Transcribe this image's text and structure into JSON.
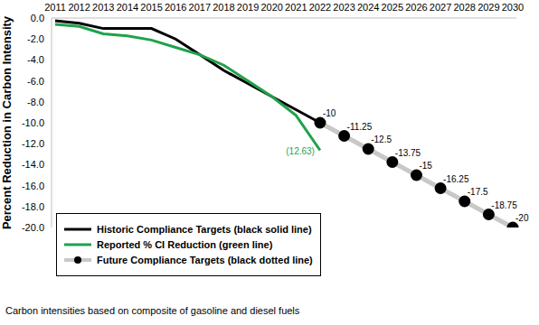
{
  "chart_data": {
    "type": "line",
    "y_label": "Percent Reduction in Carbon Intensity",
    "caption": "Carbon intensities based on composite of gasoline and diesel fuels",
    "categories": [
      "2011",
      "2012",
      "2013",
      "2014",
      "2015",
      "2016",
      "2017",
      "2018",
      "2019",
      "2020",
      "2021",
      "2022",
      "2023",
      "2024",
      "2025",
      "2026",
      "2027",
      "2028",
      "2029",
      "2030"
    ],
    "series": [
      {
        "name": "Historic Compliance Targets (black solid line)",
        "color": "#000000",
        "line_style": "solid",
        "values": [
          -0.25,
          -0.5,
          -1.0,
          -1.0,
          -1.0,
          -2.0,
          -3.5,
          -5.0,
          -6.25,
          -7.5,
          -8.75,
          -10,
          null,
          null,
          null,
          null,
          null,
          null,
          null,
          null
        ]
      },
      {
        "name": "Reported % CI Reduction (green line)",
        "color": "#1fa24a",
        "line_style": "solid",
        "values": [
          -0.6,
          -0.8,
          -1.5,
          -1.7,
          -2.1,
          -2.8,
          -3.5,
          -4.5,
          -6.0,
          -7.5,
          -9.3,
          -12.63,
          null,
          null,
          null,
          null,
          null,
          null,
          null,
          null
        ],
        "value_labels": [
          null,
          null,
          null,
          null,
          null,
          null,
          null,
          null,
          null,
          null,
          null,
          "(12.63)",
          null,
          null,
          null,
          null,
          null,
          null,
          null,
          null
        ]
      },
      {
        "name": "Future Compliance Targets (black dotted line)",
        "color": "#c8c8c8",
        "line_style": "solid",
        "marker": "circle",
        "data_labels": true,
        "values": [
          null,
          null,
          null,
          null,
          null,
          null,
          null,
          null,
          null,
          null,
          null,
          -10,
          -11.25,
          -12.5,
          -13.75,
          -15,
          -16.25,
          -17.5,
          -18.75,
          -20
        ]
      }
    ],
    "ylim": [
      -20,
      0
    ],
    "yticks": [
      {
        "value": 0,
        "label": "0.0"
      },
      {
        "value": -2,
        "label": "-2.0"
      },
      {
        "value": -4,
        "label": "-4.0"
      },
      {
        "value": -6,
        "label": "-6.0"
      },
      {
        "value": -8,
        "label": "-8.0"
      },
      {
        "value": -10,
        "label": "-10.0"
      },
      {
        "value": -12,
        "label": "-12.0"
      },
      {
        "value": -14,
        "label": "-14.0"
      },
      {
        "value": -16,
        "label": "-16.0"
      },
      {
        "value": -18,
        "label": "-18.0"
      },
      {
        "value": -20,
        "label": "-20.0"
      }
    ],
    "grid": false,
    "legend": "lower left"
  }
}
